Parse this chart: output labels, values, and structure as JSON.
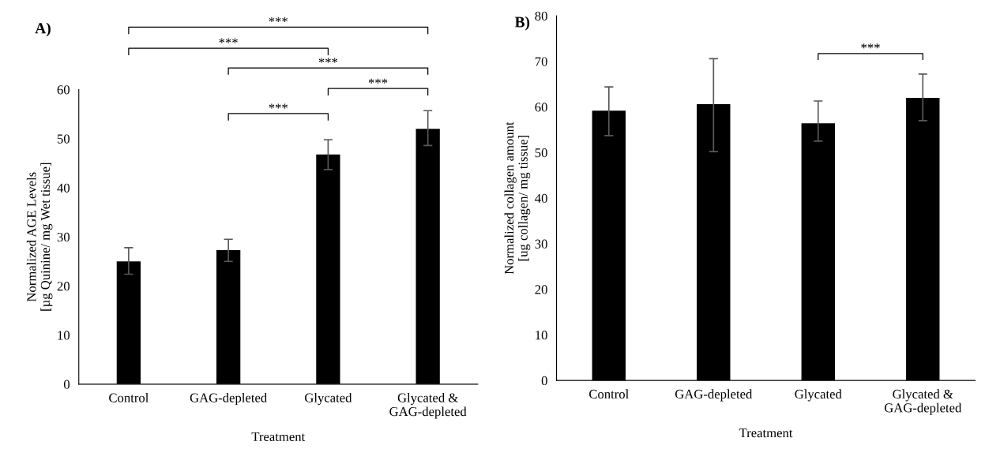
{
  "chart_data": [
    {
      "type": "bar",
      "title": "A)",
      "xlabel": "Treatment",
      "ylabel": "Normalized AGE Levels\n[µg Quinine/ mg Wet tissue]",
      "categories": [
        "Control",
        "GAG-depleted",
        "Glycated",
        "Glycated &\nGAG-depleted"
      ],
      "series": [
        {
          "color": "#000000",
          "values": [
            25.0,
            27.3,
            46.8,
            52.0
          ],
          "errors": [
            [
              22.4,
              27.8
            ],
            [
              25.0,
              29.5
            ],
            [
              43.7,
              49.8
            ],
            [
              48.6,
              55.7
            ]
          ]
        }
      ],
      "ylim": [
        0,
        60
      ],
      "yticks": [
        0,
        10,
        20,
        30,
        40,
        50,
        60
      ],
      "grid": false,
      "annotations": [
        "***",
        "***",
        "***",
        "***",
        "***"
      ]
    },
    {
      "type": "bar",
      "title": "B)",
      "xlabel": "Treatment",
      "ylabel": "Normalized collagen amount\n[ug collagen/ mg tissue]",
      "categories": [
        "Control",
        "GAG-depleted",
        "Glycated",
        "Glycated &\nGAG-depleted"
      ],
      "series": [
        {
          "color": "#000000",
          "values": [
            59.2,
            60.6,
            56.4,
            62.0
          ],
          "errors": [
            [
              53.7,
              64.4
            ],
            [
              50.2,
              70.6
            ],
            [
              52.5,
              61.3
            ],
            [
              57.0,
              67.2
            ]
          ]
        }
      ],
      "ylim": [
        0,
        80
      ],
      "yticks": [
        0,
        10,
        20,
        30,
        40,
        50,
        60,
        70,
        80
      ],
      "grid": false,
      "annotations": [
        "***"
      ]
    }
  ]
}
